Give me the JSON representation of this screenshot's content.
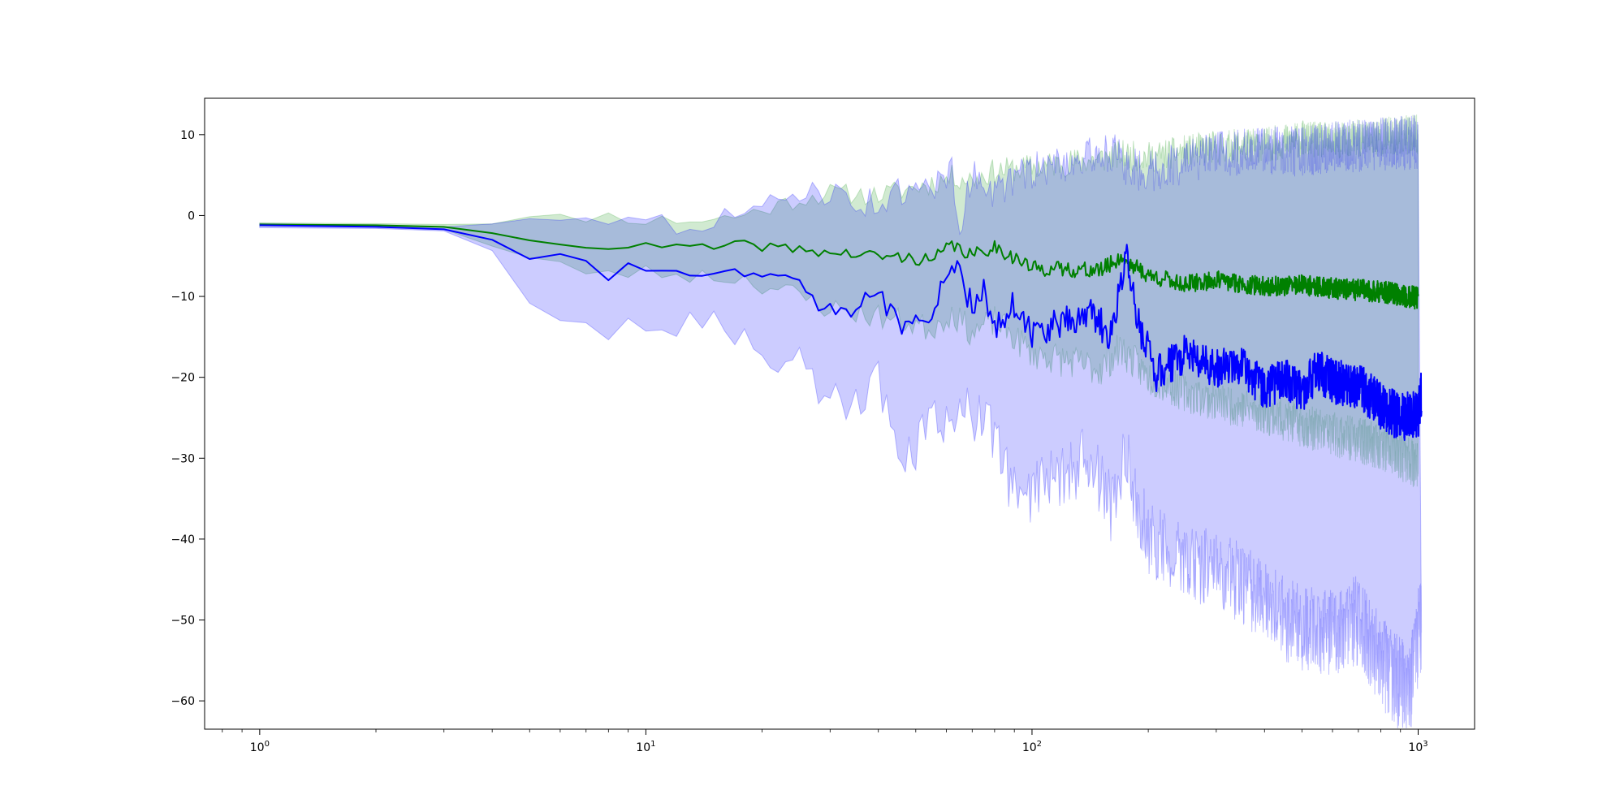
{
  "chart_data": {
    "type": "line",
    "title": "",
    "xlabel": "",
    "ylabel": "",
    "x_scale": "log",
    "xlim": [
      0.72,
      1400
    ],
    "ylim": [
      -63.5,
      14.5
    ],
    "grid": false,
    "legend": "none",
    "x_ticks": [
      {
        "value": 1,
        "base": "10",
        "exp": "0"
      },
      {
        "value": 10,
        "base": "10",
        "exp": "1"
      },
      {
        "value": 100,
        "base": "10",
        "exp": "2"
      },
      {
        "value": 1000,
        "base": "10",
        "exp": "3"
      }
    ],
    "y_ticks": [
      {
        "value": 10,
        "label": "10"
      },
      {
        "value": 0,
        "label": "0"
      },
      {
        "value": -10,
        "label": "−10"
      },
      {
        "value": -20,
        "label": "−20"
      },
      {
        "value": -30,
        "label": "−30"
      },
      {
        "value": -40,
        "label": "−40"
      },
      {
        "value": -50,
        "label": "−50"
      },
      {
        "value": -60,
        "label": "−60"
      }
    ],
    "series": [
      {
        "color": "#008000",
        "band_color": "#2ca02c",
        "mean": [
          [
            1,
            -1.1
          ],
          [
            2,
            -1.2
          ],
          [
            3,
            -1.4
          ],
          [
            4,
            -2
          ],
          [
            5,
            -3.2
          ],
          [
            7,
            -3.6
          ],
          [
            8,
            -3.9
          ],
          [
            10,
            -3.8
          ],
          [
            15,
            -4
          ],
          [
            18,
            -3.6
          ],
          [
            25,
            -4.2
          ],
          [
            30,
            -4.6
          ],
          [
            40,
            -5
          ],
          [
            50,
            -5.3
          ],
          [
            55,
            -5.6
          ],
          [
            62,
            -3.6
          ],
          [
            70,
            -5
          ],
          [
            80,
            -3.8
          ],
          [
            100,
            -6.5
          ],
          [
            150,
            -6.8
          ],
          [
            170,
            -5.2
          ],
          [
            200,
            -7.4
          ],
          [
            250,
            -8.5
          ],
          [
            300,
            -8
          ],
          [
            400,
            -8.8
          ],
          [
            500,
            -8.6
          ],
          [
            600,
            -9
          ],
          [
            800,
            -9.4
          ],
          [
            1000,
            -10.2
          ]
        ],
        "upper": [
          [
            1,
            -0.9
          ],
          [
            2,
            -1
          ],
          [
            3,
            -1.1
          ],
          [
            4,
            -0.6
          ],
          [
            5,
            -0.4
          ],
          [
            7,
            -0.2
          ],
          [
            8,
            0
          ],
          [
            10,
            -0.6
          ],
          [
            15,
            -0.5
          ],
          [
            18,
            0.1
          ],
          [
            25,
            2
          ],
          [
            30,
            2.8
          ],
          [
            40,
            2.5
          ],
          [
            50,
            3.5
          ],
          [
            55,
            4
          ],
          [
            62,
            4.8
          ],
          [
            70,
            4.5
          ],
          [
            80,
            5.5
          ],
          [
            100,
            6
          ],
          [
            150,
            7
          ],
          [
            170,
            7.5
          ],
          [
            200,
            7.2
          ],
          [
            250,
            8
          ],
          [
            300,
            8.5
          ],
          [
            400,
            8.8
          ],
          [
            500,
            9.5
          ],
          [
            600,
            9.2
          ],
          [
            800,
            9.8
          ],
          [
            1000,
            10
          ]
        ],
        "lower": [
          [
            1,
            -1.3
          ],
          [
            2,
            -1.4
          ],
          [
            3,
            -1.7
          ],
          [
            4,
            -3.8
          ],
          [
            5,
            -5.5
          ],
          [
            7,
            -6.8
          ],
          [
            8,
            -7.2
          ],
          [
            10,
            -7
          ],
          [
            15,
            -7.5
          ],
          [
            18,
            -7.8
          ],
          [
            25,
            -10
          ],
          [
            30,
            -11.5
          ],
          [
            40,
            -12.5
          ],
          [
            50,
            -13.5
          ],
          [
            55,
            -14
          ],
          [
            62,
            -12
          ],
          [
            70,
            -14.5
          ],
          [
            80,
            -13
          ],
          [
            100,
            -17
          ],
          [
            150,
            -19
          ],
          [
            170,
            -16.5
          ],
          [
            200,
            -20
          ],
          [
            250,
            -22
          ],
          [
            300,
            -23
          ],
          [
            400,
            -24.5
          ],
          [
            500,
            -26
          ],
          [
            600,
            -27
          ],
          [
            800,
            -28.5
          ],
          [
            1000,
            -31
          ]
        ]
      },
      {
        "color": "#0000ff",
        "band_color": "#0000ff",
        "mean": [
          [
            1,
            -1.2
          ],
          [
            2,
            -1.4
          ],
          [
            3,
            -1.7
          ],
          [
            4,
            -3.2
          ],
          [
            5,
            -5.2
          ],
          [
            7,
            -5.8
          ],
          [
            8,
            -7.3
          ],
          [
            9,
            -6.8
          ],
          [
            10,
            -7.2
          ],
          [
            11,
            -6.4
          ],
          [
            12,
            -7.3
          ],
          [
            15,
            -6.8
          ],
          [
            17,
            -7.8
          ],
          [
            18,
            -6.6
          ],
          [
            22,
            -8.6
          ],
          [
            24,
            -6.7
          ],
          [
            26,
            -8.4
          ],
          [
            28,
            -10.4
          ],
          [
            30,
            -10.8
          ],
          [
            35,
            -11.5
          ],
          [
            40,
            -9.5
          ],
          [
            45,
            -13.5
          ],
          [
            50,
            -12.8
          ],
          [
            55,
            -14
          ],
          [
            62,
            -4.5
          ],
          [
            65,
            -8
          ],
          [
            70,
            -11.5
          ],
          [
            75,
            -9
          ],
          [
            80,
            -13.5
          ],
          [
            90,
            -11
          ],
          [
            100,
            -14.5
          ],
          [
            120,
            -13.5
          ],
          [
            140,
            -11.8
          ],
          [
            160,
            -15
          ],
          [
            175,
            -5
          ],
          [
            190,
            -14
          ],
          [
            210,
            -19.5
          ],
          [
            250,
            -17
          ],
          [
            300,
            -19
          ],
          [
            350,
            -18.5
          ],
          [
            400,
            -21.5
          ],
          [
            450,
            -20
          ],
          [
            500,
            -22
          ],
          [
            550,
            -19
          ],
          [
            600,
            -20.5
          ],
          [
            700,
            -21
          ],
          [
            800,
            -23.5
          ],
          [
            900,
            -25
          ],
          [
            1000,
            -24.5
          ],
          [
            1020,
            -22
          ]
        ],
        "upper": [
          [
            1,
            -1
          ],
          [
            2,
            -1.2
          ],
          [
            3,
            -1.4
          ],
          [
            4,
            -0.8
          ],
          [
            5,
            -0.2
          ],
          [
            7,
            0.5
          ],
          [
            8,
            -0.3
          ],
          [
            10,
            -0.8
          ],
          [
            12,
            -1.2
          ],
          [
            15,
            -0.4
          ],
          [
            18,
            0
          ],
          [
            22,
            1.5
          ],
          [
            25,
            3
          ],
          [
            28,
            3.3
          ],
          [
            30,
            2.6
          ],
          [
            35,
            1.8
          ],
          [
            40,
            1.5
          ],
          [
            45,
            2.8
          ],
          [
            50,
            2.5
          ],
          [
            55,
            3.8
          ],
          [
            62,
            5.5
          ],
          [
            65,
            -1.5
          ],
          [
            70,
            5
          ],
          [
            75,
            4.5
          ],
          [
            80,
            2.8
          ],
          [
            90,
            4.5
          ],
          [
            100,
            5.5
          ],
          [
            120,
            6.5
          ],
          [
            140,
            7.2
          ],
          [
            160,
            8
          ],
          [
            175,
            6
          ],
          [
            200,
            5.5
          ],
          [
            250,
            6.5
          ],
          [
            300,
            7.5
          ],
          [
            400,
            8.2
          ],
          [
            500,
            7.8
          ],
          [
            600,
            8.5
          ],
          [
            800,
            8.8
          ],
          [
            1000,
            9
          ]
        ],
        "lower": [
          [
            1,
            -1.5
          ],
          [
            2,
            -1.6
          ],
          [
            3,
            -1.9
          ],
          [
            4,
            -5
          ],
          [
            5,
            -10.5
          ],
          [
            7,
            -12.5
          ],
          [
            8,
            -14
          ],
          [
            10,
            -13.5
          ],
          [
            12,
            -14
          ],
          [
            15,
            -13.5
          ],
          [
            17,
            -15
          ],
          [
            20,
            -16
          ],
          [
            22,
            -19
          ],
          [
            25,
            -16.5
          ],
          [
            28,
            -24
          ],
          [
            30,
            -23.5
          ],
          [
            35,
            -24
          ],
          [
            40,
            -21
          ],
          [
            45,
            -28
          ],
          [
            50,
            -29
          ],
          [
            55,
            -26
          ],
          [
            62,
            -26
          ],
          [
            65,
            -20.5
          ],
          [
            70,
            -24
          ],
          [
            80,
            -27.5
          ],
          [
            90,
            -34
          ],
          [
            100,
            -34
          ],
          [
            120,
            -32
          ],
          [
            140,
            -30
          ],
          [
            160,
            -36
          ],
          [
            175,
            -30
          ],
          [
            200,
            -40
          ],
          [
            250,
            -43
          ],
          [
            300,
            -43.5
          ],
          [
            400,
            -47.5
          ],
          [
            450,
            -50
          ],
          [
            500,
            -51
          ],
          [
            600,
            -51.5
          ],
          [
            700,
            -50
          ],
          [
            800,
            -55
          ],
          [
            900,
            -58
          ],
          [
            950,
            -59
          ],
          [
            1000,
            -52
          ],
          [
            1020,
            -51
          ]
        ]
      }
    ]
  }
}
